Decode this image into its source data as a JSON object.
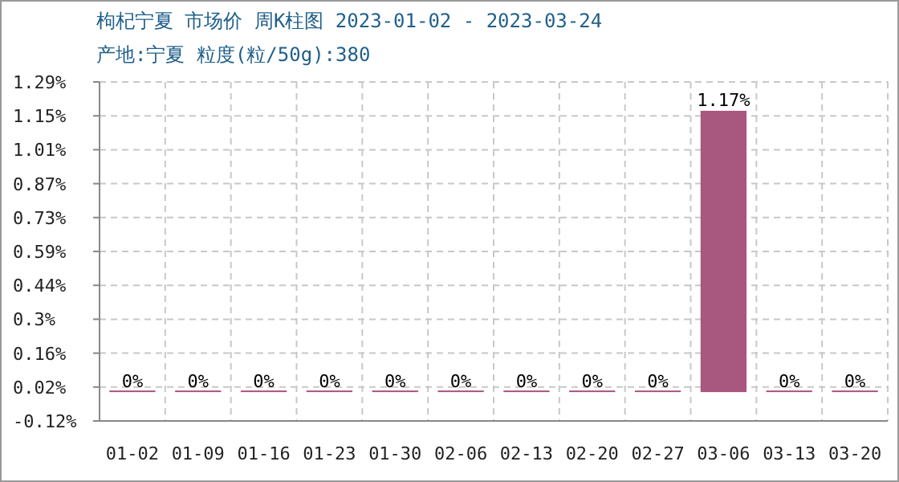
{
  "chart_data": {
    "type": "bar",
    "title": "枸杞宁夏 市场价 周K柱图 2023-01-02 - 2023-03-24",
    "subtitle": "产地:宁夏 粒度(粒/50g):380",
    "categories": [
      "01-02",
      "01-09",
      "01-16",
      "01-23",
      "01-30",
      "02-06",
      "02-13",
      "02-20",
      "02-27",
      "03-06",
      "03-13",
      "03-20"
    ],
    "values": [
      0,
      0,
      0,
      0,
      0,
      0,
      0,
      0,
      0,
      1.17,
      0,
      0
    ],
    "value_labels": [
      "0%",
      "0%",
      "0%",
      "0%",
      "0%",
      "0%",
      "0%",
      "0%",
      "0%",
      "1.17%",
      "0%",
      "0%"
    ],
    "color": "#a8577f",
    "ylim": [
      -0.12,
      1.29
    ],
    "yticks": [
      {
        "value": -0.12,
        "label": "-0.12%"
      },
      {
        "value": 0.021,
        "label": "0.02%"
      },
      {
        "value": 0.162,
        "label": "0.16%"
      },
      {
        "value": 0.303,
        "label": "0.3%"
      },
      {
        "value": 0.444,
        "label": "0.44%"
      },
      {
        "value": 0.585,
        "label": "0.59%"
      },
      {
        "value": 0.726,
        "label": "0.73%"
      },
      {
        "value": 0.867,
        "label": "0.87%"
      },
      {
        "value": 1.008,
        "label": "1.01%"
      },
      {
        "value": 1.149,
        "label": "1.15%"
      },
      {
        "value": 1.29,
        "label": "1.29%"
      }
    ],
    "grid": true
  }
}
